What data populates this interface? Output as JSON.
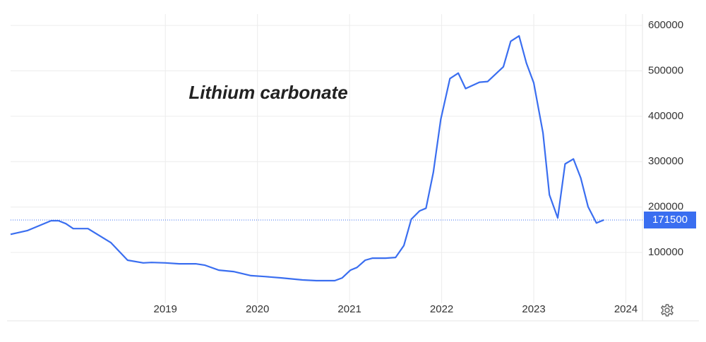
{
  "chart_data": {
    "type": "line",
    "title": "Lithium carbonate",
    "color": "#3a6ef0",
    "x": [
      2017.32,
      2017.5,
      2017.76,
      2017.84,
      2017.92,
      2018.0,
      2018.16,
      2018.41,
      2018.59,
      2018.76,
      2018.85,
      2019.0,
      2019.15,
      2019.33,
      2019.43,
      2019.58,
      2019.74,
      2019.93,
      2020.08,
      2020.26,
      2020.49,
      2020.64,
      2020.84,
      2020.92,
      2021.01,
      2021.08,
      2021.17,
      2021.25,
      2021.39,
      2021.5,
      2021.59,
      2021.67,
      2021.76,
      2021.83,
      2021.91,
      2021.99,
      2022.09,
      2022.18,
      2022.26,
      2022.41,
      2022.5,
      2022.67,
      2022.75,
      2022.84,
      2022.92,
      2023.0,
      2023.1,
      2023.17,
      2023.26,
      2023.34,
      2023.43,
      2023.51,
      2023.59,
      2023.68,
      2023.76
    ],
    "values": [
      140000,
      148000,
      170000,
      170000,
      163500,
      152500,
      152500,
      121500,
      83000,
      77000,
      78000,
      77000,
      75000,
      75000,
      72000,
      61000,
      58000,
      49000,
      47000,
      44000,
      39500,
      38000,
      38000,
      44000,
      61000,
      67000,
      83000,
      87500,
      87500,
      89000,
      115500,
      173000,
      191500,
      197500,
      276500,
      393000,
      483000,
      495000,
      461000,
      475000,
      476500,
      509000,
      565000,
      577000,
      517000,
      473500,
      363500,
      227000,
      176000,
      295000,
      306000,
      264000,
      200500,
      165000,
      171500
    ],
    "current_value": 171500,
    "xlim": [
      2017.32,
      2024.18
    ],
    "xticks": [
      2019,
      2020,
      2021,
      2022,
      2023,
      2024
    ],
    "ylim": [
      -4000,
      625000
    ],
    "yticks": [
      100000,
      200000,
      300000,
      400000,
      500000,
      600000
    ],
    "grid": true
  }
}
